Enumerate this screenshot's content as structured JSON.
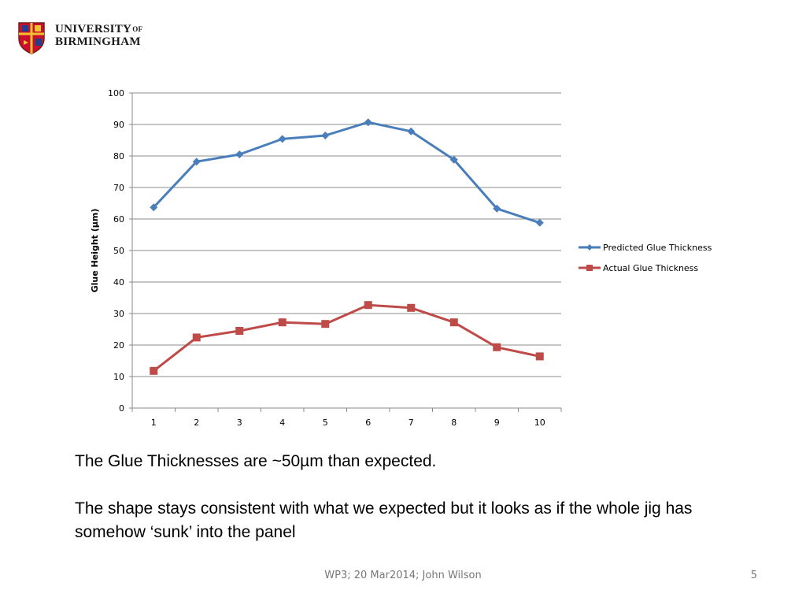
{
  "header": {
    "logo_line1": "UNIVERSITY",
    "logo_of": "OF",
    "logo_line2": "BIRMINGHAM"
  },
  "chart_data": {
    "type": "line",
    "categories": [
      "1",
      "2",
      "3",
      "4",
      "5",
      "6",
      "7",
      "8",
      "9",
      "10"
    ],
    "series": [
      {
        "name": "Predicted Glue Thickness",
        "color": "#4a7ebb",
        "marker": "diamond",
        "values": [
          63.7,
          78.2,
          80.5,
          85.4,
          86.5,
          90.7,
          87.8,
          78.8,
          63.3,
          58.8
        ]
      },
      {
        "name": "Actual Glue Thickness",
        "color": "#be4b48",
        "marker": "square",
        "values": [
          11.8,
          22.4,
          24.5,
          27.2,
          26.7,
          32.7,
          31.8,
          27.2,
          19.3,
          16.4
        ]
      }
    ],
    "ylabel": "Glue Height (µm)",
    "xlabel": "",
    "ylim": [
      0,
      100
    ],
    "yticks": [
      0,
      10,
      20,
      30,
      40,
      50,
      60,
      70,
      80,
      90,
      100
    ],
    "grid": true,
    "legend": "right"
  },
  "body": {
    "line1": "The Glue Thicknesses are ~50µm than expected.",
    "line2": "The shape stays consistent with what we expected but it looks as if the whole jig has somehow ‘sunk’ into the panel"
  },
  "footer": {
    "text": "WP3; 20 Mar2014; John Wilson",
    "page": "5"
  }
}
